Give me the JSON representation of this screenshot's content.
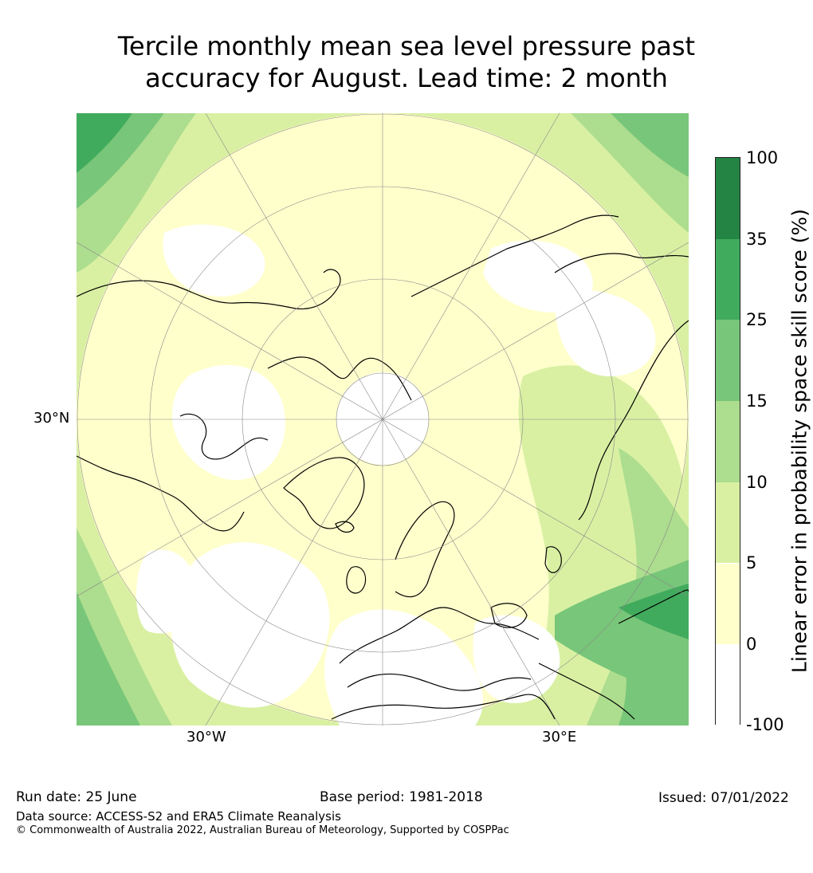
{
  "title_line1": "Tercile monthly mean sea level pressure past",
  "title_line2": "accuracy for August. Lead time: 2 month",
  "map": {
    "projection": "north-polar-stereographic",
    "labels": {
      "lat": "30°N",
      "lon_west": "30°W",
      "lon_east": "30°E"
    },
    "colors": {
      "lvl_neg": "#ffffff",
      "lvl_0_5": "#ffffcc",
      "lvl_5_10": "#d9f0a3",
      "lvl_10_15": "#addd8e",
      "lvl_15_25": "#78c679",
      "lvl_25_35": "#41ab5d",
      "lvl_35_100": "#238443",
      "coast": "#000000",
      "grid": "#888888"
    }
  },
  "colorbar": {
    "title": "Linear error in probability space skill score (%)",
    "ticks": [
      "100",
      "35",
      "25",
      "15",
      "10",
      "5",
      "0",
      "-100"
    ],
    "segments": [
      {
        "range": "35–100",
        "color": "#238443"
      },
      {
        "range": "25–35",
        "color": "#41ab5d"
      },
      {
        "range": "15–25",
        "color": "#78c679"
      },
      {
        "range": "10–15",
        "color": "#addd8e"
      },
      {
        "range": "5–10",
        "color": "#d9f0a3"
      },
      {
        "range": "0–5",
        "color": "#ffffcc"
      },
      {
        "range": "-100–0",
        "color": "#ffffff"
      }
    ]
  },
  "footer": {
    "run_date": "Run date: 25 June",
    "base_period": "Base period: 1981-2018",
    "issued": "Issued: 07/01/2022",
    "data_source": "Data source: ACCESS-S2 and ERA5 Climate Reanalysis",
    "copyright": "© Commonwealth of Australia 2022, Australian Bureau of Meteorology, Supported by COSPPac"
  }
}
